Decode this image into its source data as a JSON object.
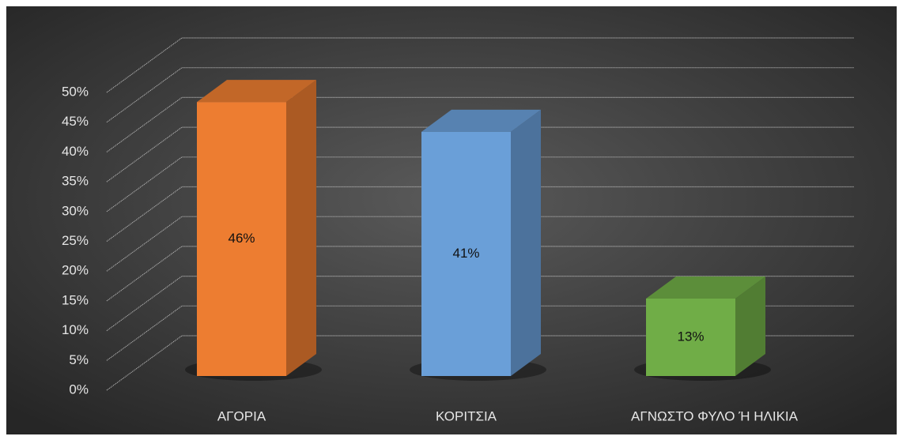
{
  "chart_data": {
    "type": "bar3d",
    "categories": [
      "ΑΓΟΡΙΑ",
      "ΚΟΡΙΤΣΙΑ",
      "ΑΓΝΩΣΤΟ ΦΥΛΟ Ή ΗΛΙΚΙΑ"
    ],
    "values": [
      46,
      41,
      13
    ],
    "value_labels": [
      "46%",
      "41%",
      "13%"
    ],
    "colors": [
      "#ed7d31",
      "#6a9fd8",
      "#70ad47"
    ],
    "ylim": [
      0,
      50
    ],
    "yticks": [
      {
        "value": 0,
        "label": "0%"
      },
      {
        "value": 5,
        "label": "5%"
      },
      {
        "value": 10,
        "label": "10%"
      },
      {
        "value": 15,
        "label": "15%"
      },
      {
        "value": 20,
        "label": "20%"
      },
      {
        "value": 25,
        "label": "25%"
      },
      {
        "value": 30,
        "label": "30%"
      },
      {
        "value": 35,
        "label": "35%"
      },
      {
        "value": 40,
        "label": "40%"
      },
      {
        "value": 45,
        "label": "45%"
      },
      {
        "value": 50,
        "label": "50%"
      }
    ],
    "grid": true
  }
}
